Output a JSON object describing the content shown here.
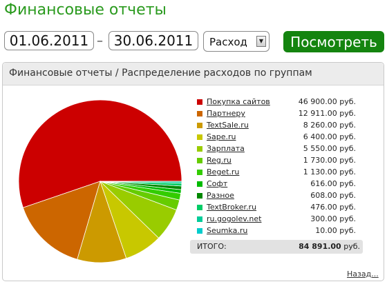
{
  "header": {
    "title": "Финансовые отчеты"
  },
  "filters": {
    "date_from": "01.06.2011",
    "separator": "–",
    "date_to": "30.06.2011",
    "type_select": {
      "value": "Расход",
      "arrow": "▼"
    },
    "submit_label": "Посмотреть"
  },
  "panel": {
    "title": "Финансовые отчеты / Распределение расходов по группам",
    "total_label": "ИТОГО:",
    "total_value": "84 891.00",
    "total_unit": "руб.",
    "more_link": "Назад..."
  },
  "legend": [
    {
      "name": "Покупка сайтов",
      "value": "46 900.00 руб.",
      "color": "#cc0000"
    },
    {
      "name": "Партнеру",
      "value": "12 911.00 руб.",
      "color": "#cc6600"
    },
    {
      "name": "TextSale.ru",
      "value": "8 260.00 руб.",
      "color": "#cc9a00"
    },
    {
      "name": "Sape.ru",
      "value": "6 400.00 руб.",
      "color": "#c8c800"
    },
    {
      "name": "Зарплата",
      "value": "5 550.00 руб.",
      "color": "#99cc00"
    },
    {
      "name": "Reg.ru",
      "value": "1 730.00 руб.",
      "color": "#66cc00"
    },
    {
      "name": "Beget.ru",
      "value": "1 130.00 руб.",
      "color": "#33cc00"
    },
    {
      "name": "Софт",
      "value": "616.00 руб.",
      "color": "#00bb00"
    },
    {
      "name": "Разное",
      "value": "608.00 руб.",
      "color": "#008800"
    },
    {
      "name": "TextBroker.ru",
      "value": "476.00 руб.",
      "color": "#00cc66"
    },
    {
      "name": "ru.gogolev.net",
      "value": "300.00 руб.",
      "color": "#00cc99"
    },
    {
      "name": "Seumka.ru",
      "value": "10.00 руб.",
      "color": "#00cccc"
    }
  ],
  "chart_data": {
    "type": "pie",
    "categories": [
      "Покупка сайтов",
      "Партнеру",
      "TextSale.ru",
      "Sape.ru",
      "Зарплата",
      "Reg.ru",
      "Beget.ru",
      "Софт",
      "Разное",
      "TextBroker.ru",
      "ru.gogolev.net",
      "Seumka.ru"
    ],
    "values": [
      46900,
      12911,
      8260,
      6400,
      5550,
      1730,
      1130,
      616,
      608,
      476,
      300,
      10
    ],
    "colors": [
      "#cc0000",
      "#cc6600",
      "#cc9a00",
      "#c8c800",
      "#99cc00",
      "#66cc00",
      "#33cc00",
      "#00bb00",
      "#008800",
      "#00cc66",
      "#00cc99",
      "#00cccc"
    ]
  }
}
